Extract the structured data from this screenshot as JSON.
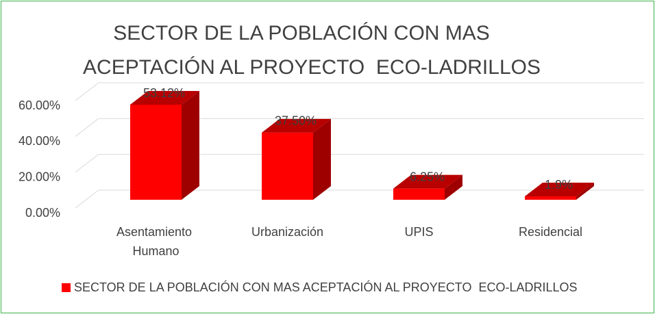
{
  "chart_data": {
    "type": "bar3d",
    "title": [
      "SECTOR DE LA POBLACIÓN CON MAS",
      "ACEPTACIÓN AL PROYECTO  ECO-LADRILLOS"
    ],
    "categories": [
      "Asentamiento Humano",
      "Urbanización",
      "UPIS",
      "Residencial"
    ],
    "series": [
      {
        "name": "SECTOR DE LA POBLACIÓN CON MAS ACEPTACIÓN AL PROYECTO  ECO-LADRILLOS",
        "color": "#ff0000",
        "values": [
          53.12,
          37.5,
          6.25,
          1.9
        ],
        "value_labels": [
          "53.12%",
          "37.50%",
          "6.25%",
          "1.9%"
        ]
      }
    ],
    "ylim": [
      0,
      60
    ],
    "yticks": [
      {
        "value": 0,
        "label": "0.00%"
      },
      {
        "value": 20,
        "label": "20.00%"
      },
      {
        "value": 40,
        "label": "40.00%"
      },
      {
        "value": 60,
        "label": "60.00%"
      }
    ],
    "grid": true,
    "legend": "bottom"
  }
}
